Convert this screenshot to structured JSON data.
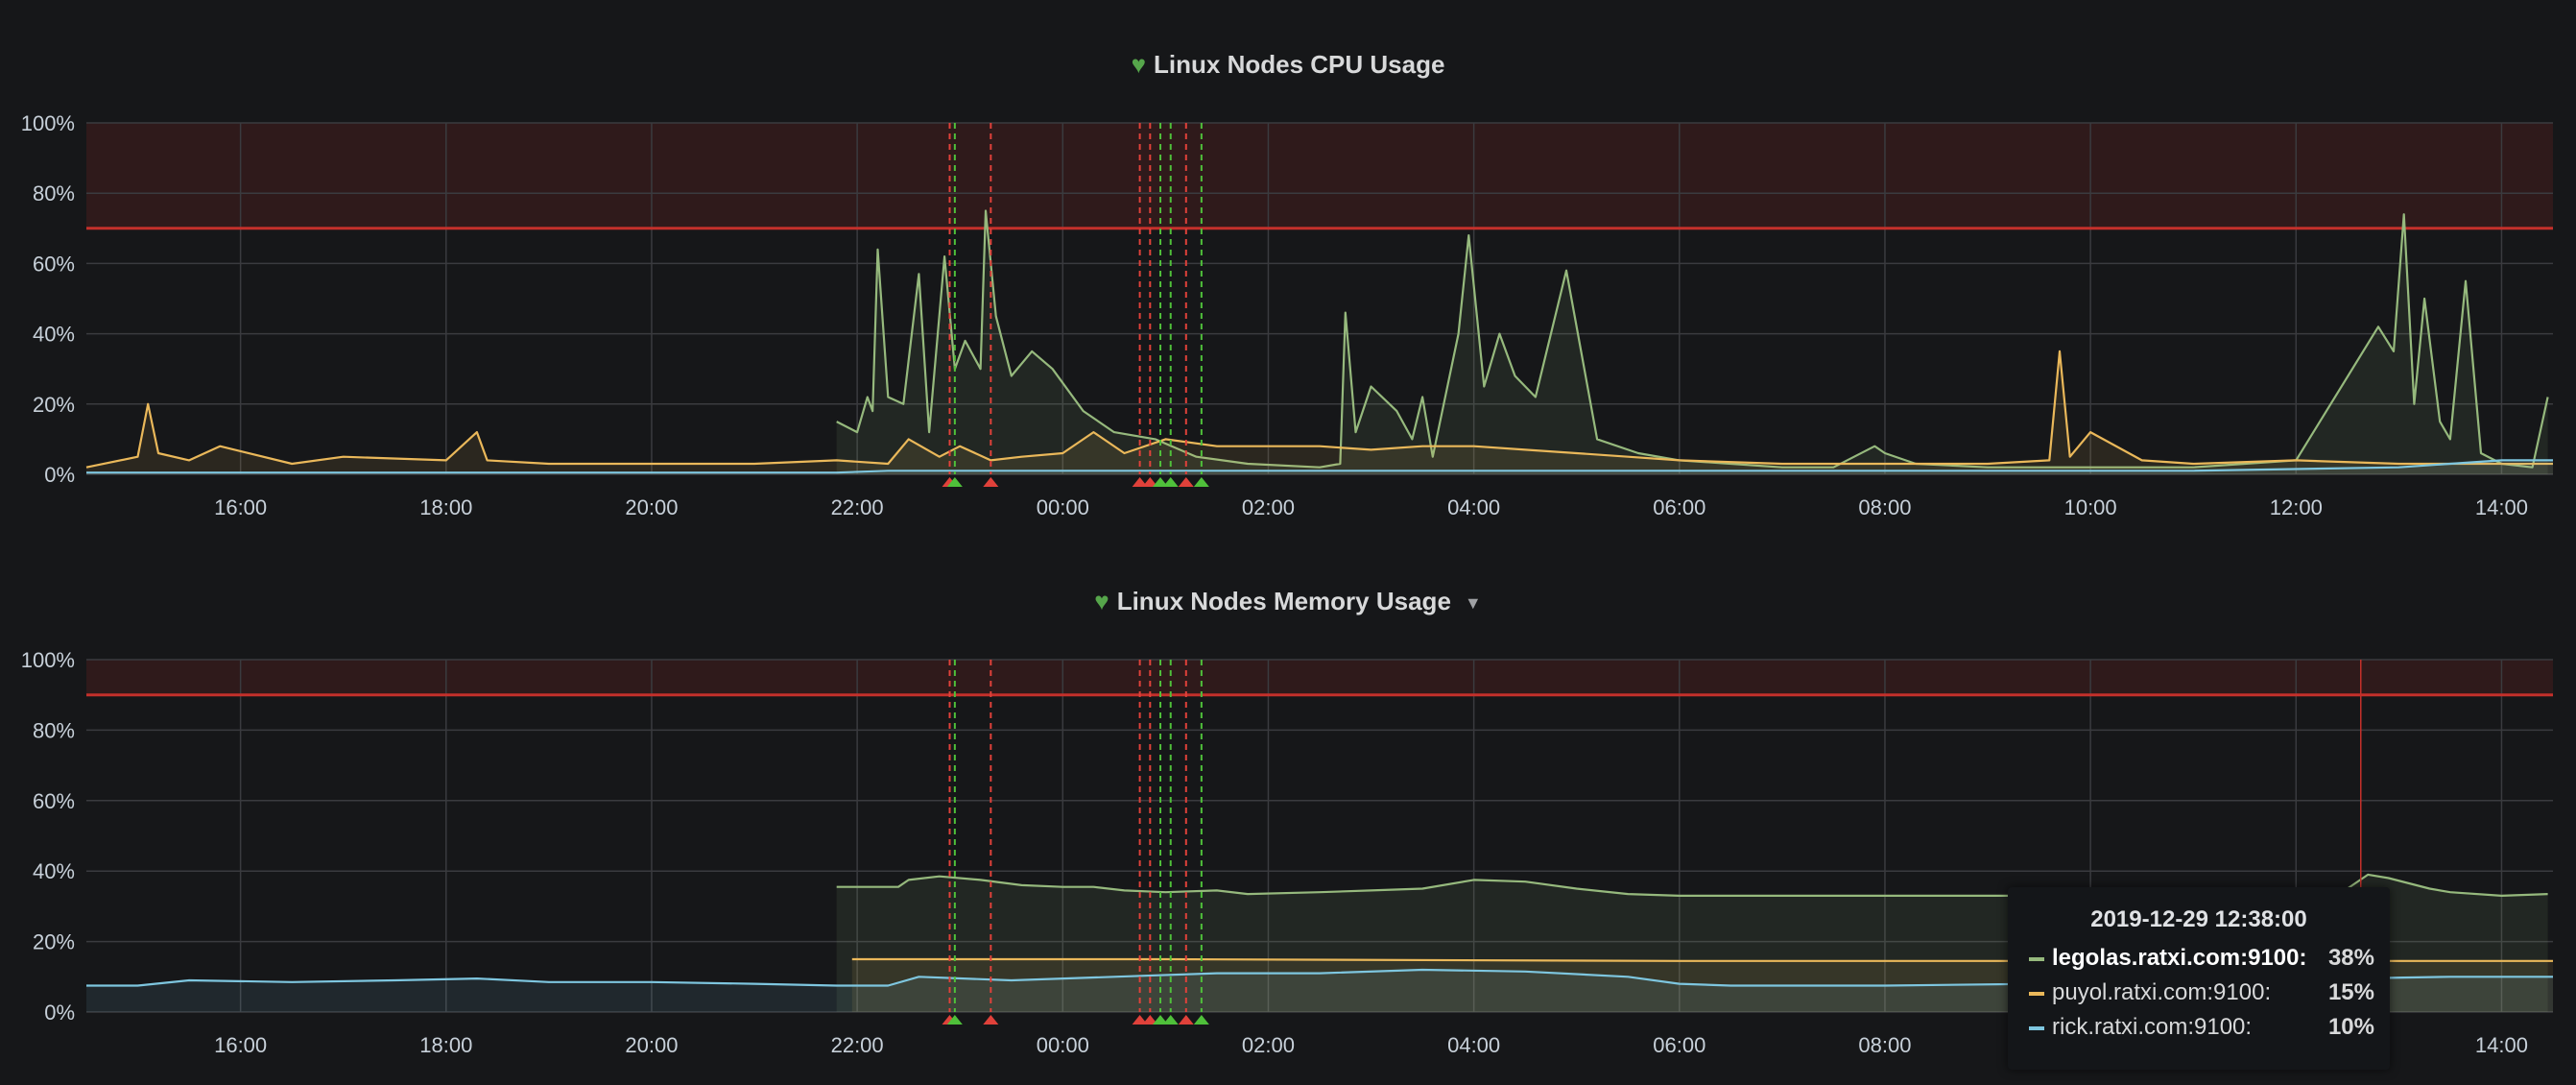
{
  "colors": {
    "legolas": "#96b97d",
    "puyol": "#eab85a",
    "rick": "#7ec6df",
    "threshold": "#c4302b",
    "alert_ok": "#4fc03a",
    "alert_firing": "#e0413a"
  },
  "x_ticks": [
    "16:00",
    "18:00",
    "20:00",
    "22:00",
    "00:00",
    "02:00",
    "04:00",
    "06:00",
    "08:00",
    "10:00",
    "12:00",
    "14:00"
  ],
  "alert_annotations": [
    {
      "t": 22.9,
      "state": "firing"
    },
    {
      "t": 22.95,
      "state": "ok"
    },
    {
      "t": 23.3,
      "state": "firing"
    },
    {
      "t": 24.75,
      "state": "firing"
    },
    {
      "t": 24.85,
      "state": "firing"
    },
    {
      "t": 24.95,
      "state": "ok"
    },
    {
      "t": 25.05,
      "state": "ok"
    },
    {
      "t": 25.2,
      "state": "firing"
    },
    {
      "t": 25.35,
      "state": "ok"
    }
  ],
  "cpu_panel": {
    "title": "Linux Nodes CPU Usage",
    "icon": "heart-icon",
    "y_ticks": [
      "0%",
      "20%",
      "40%",
      "60%",
      "80%",
      "100%"
    ]
  },
  "memory_panel": {
    "title": "Linux Nodes Memory Usage",
    "icon": "heart-icon",
    "menu_icon": "caret-down-icon",
    "y_ticks": [
      "0%",
      "20%",
      "40%",
      "60%",
      "80%",
      "100%"
    ]
  },
  "tooltip": {
    "time": "2019-12-29 12:38:00",
    "rows": [
      {
        "name": "legolas.ratxi.com:9100:",
        "value": "38%",
        "color": "#96b97d",
        "highlight": true
      },
      {
        "name": "puyol.ratxi.com:9100:",
        "value": "15%",
        "color": "#eab85a",
        "highlight": false
      },
      {
        "name": "rick.ratxi.com:9100:",
        "value": "10%",
        "color": "#7ec6df",
        "highlight": false
      }
    ]
  },
  "chart_data": [
    {
      "type": "line",
      "title": "Linux Nodes CPU Usage",
      "x_unit": "hours since 00:00 (values above 24 are next day)",
      "xlim": [
        14.5,
        38.5
      ],
      "ylim": [
        0,
        100
      ],
      "threshold": 70,
      "grid": true,
      "series": [
        {
          "name": "legolas.ratxi.com:9100",
          "x": [
            21.8,
            22.0,
            22.1,
            22.15,
            22.2,
            22.3,
            22.45,
            22.6,
            22.7,
            22.85,
            22.95,
            23.05,
            23.2,
            23.25,
            23.35,
            23.5,
            23.7,
            23.9,
            24.2,
            24.5,
            24.9,
            25.3,
            25.8,
            26.5,
            26.7,
            26.75,
            26.85,
            27.0,
            27.25,
            27.4,
            27.5,
            27.6,
            27.85,
            27.95,
            28.1,
            28.25,
            28.4,
            28.6,
            28.9,
            29.2,
            29.6,
            30.0,
            30.5,
            31.0,
            31.5,
            31.9,
            32.0,
            32.3,
            33.0,
            34.0,
            35.0,
            35.5,
            36.0,
            36.8,
            36.95,
            37.05,
            37.15,
            37.25,
            37.4,
            37.5,
            37.65,
            37.8,
            38.0,
            38.3,
            38.45
          ],
          "y": [
            15,
            12,
            22,
            18,
            64,
            22,
            20,
            57,
            12,
            62,
            30,
            38,
            30,
            75,
            45,
            28,
            35,
            30,
            18,
            12,
            10,
            5,
            3,
            2,
            3,
            46,
            12,
            25,
            18,
            10,
            22,
            5,
            40,
            68,
            25,
            40,
            28,
            22,
            58,
            10,
            6,
            4,
            3,
            2,
            2,
            8,
            6,
            3,
            2,
            2,
            2,
            3,
            4,
            42,
            35,
            74,
            20,
            50,
            15,
            10,
            55,
            6,
            3,
            2,
            22
          ]
        },
        {
          "name": "puyol.ratxi.com:9100",
          "x": [
            14.5,
            15.0,
            15.1,
            15.2,
            15.5,
            15.8,
            16.5,
            17.0,
            18.0,
            18.3,
            18.4,
            19.0,
            20.0,
            21.0,
            21.8,
            22.3,
            22.5,
            22.8,
            23.0,
            23.3,
            23.6,
            24.0,
            24.3,
            24.6,
            25.0,
            25.5,
            26.0,
            26.5,
            27.0,
            27.5,
            28.0,
            28.5,
            29.0,
            29.5,
            30.0,
            31.0,
            32.0,
            33.0,
            33.6,
            33.7,
            33.8,
            34.0,
            34.5,
            35.0,
            36.0,
            37.0,
            38.0,
            38.5
          ],
          "y": [
            2,
            5,
            20,
            6,
            4,
            8,
            3,
            5,
            4,
            12,
            4,
            3,
            3,
            3,
            4,
            3,
            10,
            5,
            8,
            4,
            5,
            6,
            12,
            6,
            10,
            8,
            8,
            8,
            7,
            8,
            8,
            7,
            6,
            5,
            4,
            3,
            3,
            3,
            4,
            35,
            5,
            12,
            4,
            3,
            4,
            3,
            3,
            3
          ]
        },
        {
          "name": "rick.ratxi.com:9100",
          "x": [
            14.5,
            21.8,
            22.3,
            25.0,
            29.0,
            32.0,
            35.0,
            37.0,
            37.5,
            38.0,
            38.5
          ],
          "y": [
            0.5,
            0.5,
            1,
            1,
            1,
            1,
            1,
            2,
            3,
            4,
            4
          ]
        }
      ]
    },
    {
      "type": "line",
      "title": "Linux Nodes Memory Usage",
      "x_unit": "hours since 00:00 (values above 24 are next day)",
      "xlim": [
        14.5,
        38.5
      ],
      "ylim": [
        0,
        100
      ],
      "threshold": 90,
      "grid": true,
      "series": [
        {
          "name": "legolas.ratxi.com:9100",
          "x": [
            21.8,
            22.1,
            22.4,
            22.5,
            22.8,
            23.2,
            23.6,
            24.0,
            24.3,
            24.6,
            25.0,
            25.5,
            25.8,
            26.5,
            27.0,
            27.5,
            28.0,
            28.5,
            29.0,
            29.5,
            30.0,
            32.0,
            34.0,
            35.5,
            36.0,
            36.5,
            36.7,
            36.9,
            37.3,
            37.5,
            38.0,
            38.45
          ],
          "y": [
            35.5,
            35.5,
            35.5,
            37.5,
            38.5,
            37.5,
            36,
            35.5,
            35.5,
            34.5,
            34,
            34.5,
            33.5,
            34,
            34.5,
            35,
            37.5,
            37,
            35,
            33.5,
            33,
            33,
            33,
            33.5,
            34,
            35,
            39,
            38,
            35,
            34,
            33,
            33.5
          ]
        },
        {
          "name": "puyol.ratxi.com:9100",
          "x": [
            21.95,
            25.0,
            30.0,
            38.5
          ],
          "y": [
            15,
            15,
            14.5,
            14.5
          ]
        },
        {
          "name": "rick.ratxi.com:9100",
          "x": [
            14.5,
            15.0,
            15.5,
            16.5,
            17.5,
            18.3,
            19.0,
            20.0,
            21.0,
            21.8,
            22.3,
            22.6,
            23.5,
            24.5,
            25.5,
            26.5,
            27.5,
            28.5,
            29.5,
            30.0,
            30.5,
            32.0,
            33.5,
            35.0,
            36.5,
            37.5,
            38.5
          ],
          "y": [
            7.5,
            7.5,
            9,
            8.5,
            9,
            9.5,
            8.5,
            8.5,
            8,
            7.5,
            7.5,
            10,
            9,
            10,
            11,
            11,
            12,
            11.5,
            10,
            8,
            7.5,
            7.5,
            8,
            9,
            9.5,
            10,
            10
          ]
        }
      ]
    }
  ]
}
